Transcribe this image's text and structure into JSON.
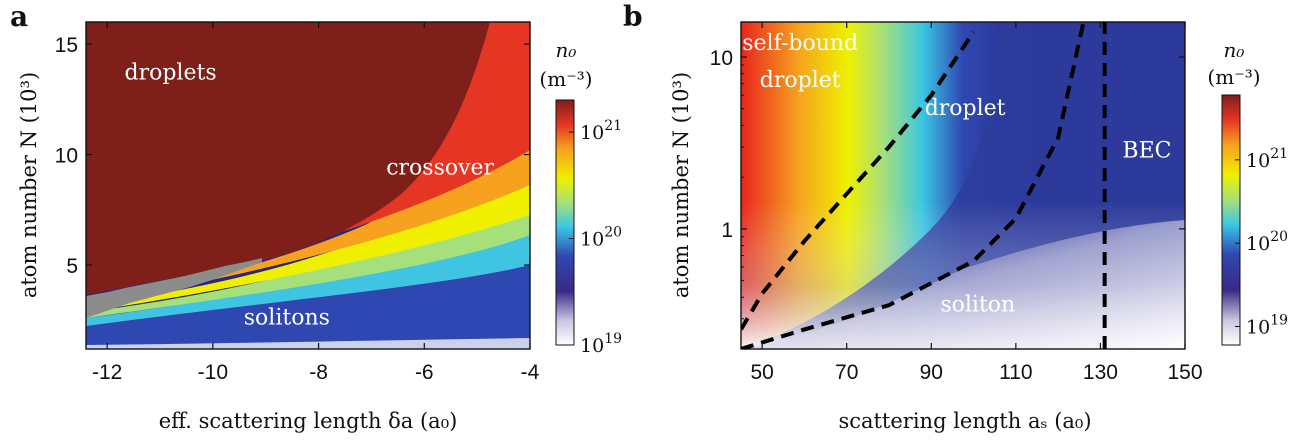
{
  "chart_data": [
    {
      "type": "heatmap",
      "panel_label": "a",
      "xlabel": "eff. scattering length δa (a₀)",
      "ylabel": "atom number N (10³)",
      "xlim": [
        -12.4,
        -4
      ],
      "ylim": [
        1.2,
        16
      ],
      "x_ticks": [
        -12,
        -10,
        -8,
        -6,
        -4
      ],
      "x_tick_labels": [
        "-12",
        "-10",
        "-8",
        "-6",
        "-4"
      ],
      "y_ticks": [
        5,
        10,
        15
      ],
      "y_tick_labels": [
        "5",
        "10",
        "15"
      ],
      "regions": [
        {
          "label": "droplets",
          "x": -10.8,
          "y": 13.4
        },
        {
          "label": "crossover",
          "x": -5.7,
          "y": 9.1
        },
        {
          "label": "solitons",
          "x": -8.6,
          "y": 2.3
        }
      ],
      "colorbar": {
        "title": "n₀",
        "unit": "(m⁻³)",
        "scale": "log",
        "range": [
          1e+19,
          2e+21
        ],
        "ticks": [
          1e+19,
          1e+20,
          1e+21
        ],
        "tick_labels": [
          "10",
          "10",
          "10"
        ],
        "tick_exponents": [
          "19",
          "20",
          "21"
        ]
      },
      "colors": {
        "saturated": "#7f1f1a",
        "unstable": "#8c8c8c"
      }
    },
    {
      "type": "heatmap",
      "panel_label": "b",
      "xlabel": "scattering length aₛ (a₀)",
      "ylabel": "atom number N (10³)",
      "xlim": [
        45,
        150
      ],
      "ylim": [
        0.2,
        16
      ],
      "yscale": "log",
      "x_ticks": [
        50,
        70,
        90,
        110,
        130,
        150
      ],
      "x_tick_labels": [
        "50",
        "70",
        "90",
        "110",
        "130",
        "150"
      ],
      "y_ticks": [
        1,
        10
      ],
      "y_tick_labels": [
        "1",
        "10"
      ],
      "boundaries": [
        {
          "x": [
            45,
            50,
            60,
            70,
            80,
            90,
            100
          ],
          "y": [
            0.26,
            0.42,
            0.85,
            1.6,
            3.0,
            6.0,
            14.0
          ]
        },
        {
          "x": [
            45,
            60,
            80,
            100,
            110,
            120,
            126
          ],
          "y": [
            0.2,
            0.26,
            0.36,
            0.65,
            1.15,
            3.4,
            16
          ]
        },
        {
          "x": [
            131,
            131
          ],
          "y": [
            0.2,
            16
          ]
        }
      ],
      "regions": [
        {
          "label": "self-bound",
          "x": 59,
          "y": 11
        },
        {
          "label": "droplet",
          "x": 59,
          "y": 6.7
        },
        {
          "label": "droplet",
          "x": 98,
          "y": 4.6
        },
        {
          "label": "BEC",
          "x": 141,
          "y": 2.6
        },
        {
          "label": "soliton",
          "x": 101,
          "y": 0.33
        }
      ],
      "colorbar": {
        "title": "n₀",
        "unit": "(m⁻³)",
        "scale": "log",
        "range": [
          6e+18,
          6e+21
        ],
        "ticks": [
          1e+19,
          1e+20,
          1e+21
        ],
        "tick_labels": [
          "10",
          "10",
          "10"
        ],
        "tick_exponents": [
          "19",
          "20",
          "21"
        ]
      }
    }
  ]
}
